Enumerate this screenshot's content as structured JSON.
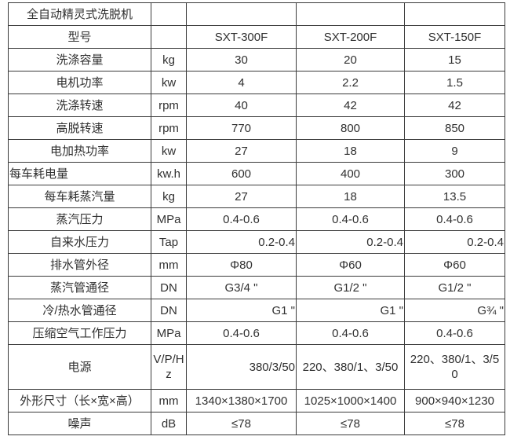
{
  "colors": {
    "border": "#3b3b3b",
    "text": "#303030",
    "background": "#ffffff"
  },
  "table": {
    "title_row_label": "全自动精灵式洗脱机",
    "rows": [
      {
        "label": "全自动精灵式洗脱机",
        "unit": "",
        "v": [
          "",
          "",
          ""
        ]
      },
      {
        "label": "型号",
        "unit": "",
        "v": [
          "SXT-300F",
          "SXT-200F",
          "SXT-150F"
        ]
      },
      {
        "label": "洗涤容量",
        "unit": "kg",
        "v": [
          "30",
          "20",
          "15"
        ]
      },
      {
        "label": "电机功率",
        "unit": "kw",
        "v": [
          "4",
          "2.2",
          "1.5"
        ]
      },
      {
        "label": "洗涤转速",
        "unit": "rpm",
        "v": [
          "40",
          "42",
          "42"
        ]
      },
      {
        "label": "高脱转速",
        "unit": "rpm",
        "v": [
          "770",
          "800",
          "850"
        ]
      },
      {
        "label": "电加热功率",
        "unit": "kw",
        "v": [
          "27",
          "18",
          "9"
        ]
      },
      {
        "label": "每车耗电量",
        "unit": "kw.h",
        "v": [
          "600",
          "400",
          "300"
        ]
      },
      {
        "label": "每车耗蒸汽量",
        "unit": "kg",
        "v": [
          "27",
          "18",
          "13.5"
        ]
      },
      {
        "label": "蒸汽压力",
        "unit": "MPa",
        "v": [
          "0.4-0.6",
          "0.4-0.6",
          "0.4-0.6"
        ]
      },
      {
        "label": "自来水压力",
        "unit": "Tap",
        "v": [
          "0.2-0.4",
          "0.2-0.4",
          "0.2-0.4"
        ]
      },
      {
        "label": "排水管外径",
        "unit": "mm",
        "v": [
          "Φ80",
          "Φ60",
          "Φ60"
        ]
      },
      {
        "label": "蒸汽管通径",
        "unit": "DN",
        "v": [
          "G3/4 \"",
          "G1/2 \"",
          "G1/2 \""
        ]
      },
      {
        "label": "冷/热水管通径",
        "unit": "DN",
        "v": [
          "G1 \"",
          "G1 \"",
          "G¾ \""
        ]
      },
      {
        "label": "压缩空气工作压力",
        "unit": "MPa",
        "v": [
          "0.4-0.6",
          "0.4-0.6",
          "0.4-0.6"
        ]
      },
      {
        "label": "电源",
        "unit": "V/P/Hz",
        "v": [
          "380/3/50",
          "220、380/1、3/50",
          "220、380/1、3/50"
        ]
      },
      {
        "label": "外形尺寸（长×宽×高）",
        "unit": "mm",
        "v": [
          "1340×1380×1700",
          "1025×1000×1400",
          "900×940×1230"
        ]
      },
      {
        "label": "噪声",
        "unit": "dB",
        "v": [
          "≤78",
          "≤78",
          "≤78"
        ]
      }
    ]
  }
}
